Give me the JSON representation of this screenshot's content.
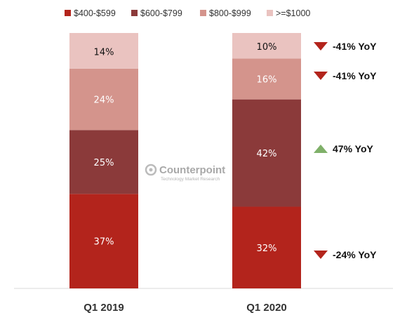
{
  "chart_data": {
    "type": "bar",
    "stacked": true,
    "categories": [
      "Q1 2019",
      "Q1 2020"
    ],
    "series": [
      {
        "name": "$400-$599",
        "values": [
          37,
          32
        ],
        "labels": [
          "37%",
          "32%"
        ],
        "color": "#b3241c",
        "label_color": "#ffffff"
      },
      {
        "name": "$600-$799",
        "values": [
          25,
          42
        ],
        "labels": [
          "25%",
          "42%"
        ],
        "color": "#8b3a3a",
        "label_color": "#ffffff"
      },
      {
        "name": "$800-$999",
        "values": [
          24,
          16
        ],
        "labels": [
          "24%",
          "16%"
        ],
        "color": "#d4948c",
        "label_color": "#ffffff"
      },
      {
        "name": ">=$1000",
        "values": [
          14,
          10
        ],
        "labels": [
          "14%",
          "10%"
        ],
        "color": "#eac3c0",
        "label_color": "#111111"
      }
    ],
    "ylim": [
      0,
      100
    ],
    "title": "",
    "xlabel": "",
    "ylabel": "",
    "grid": false,
    "legend": "top-center"
  },
  "annotations": [
    {
      "series": ">=$1000",
      "text": "-41% YoY",
      "direction": "down",
      "color": "#b3241c"
    },
    {
      "series": "$800-$999",
      "text": "-41% YoY",
      "direction": "down",
      "color": "#b3241c"
    },
    {
      "series": "$600-$799",
      "text": "47% YoY",
      "direction": "up",
      "color": "#7fb069"
    },
    {
      "series": "$400-$599",
      "text": "-24% YoY",
      "direction": "down",
      "color": "#b3241c"
    }
  ],
  "watermark": {
    "brand": "Counterpoint",
    "tagline": "Technology Market Research",
    "icon": "counterpoint-logo-icon"
  }
}
